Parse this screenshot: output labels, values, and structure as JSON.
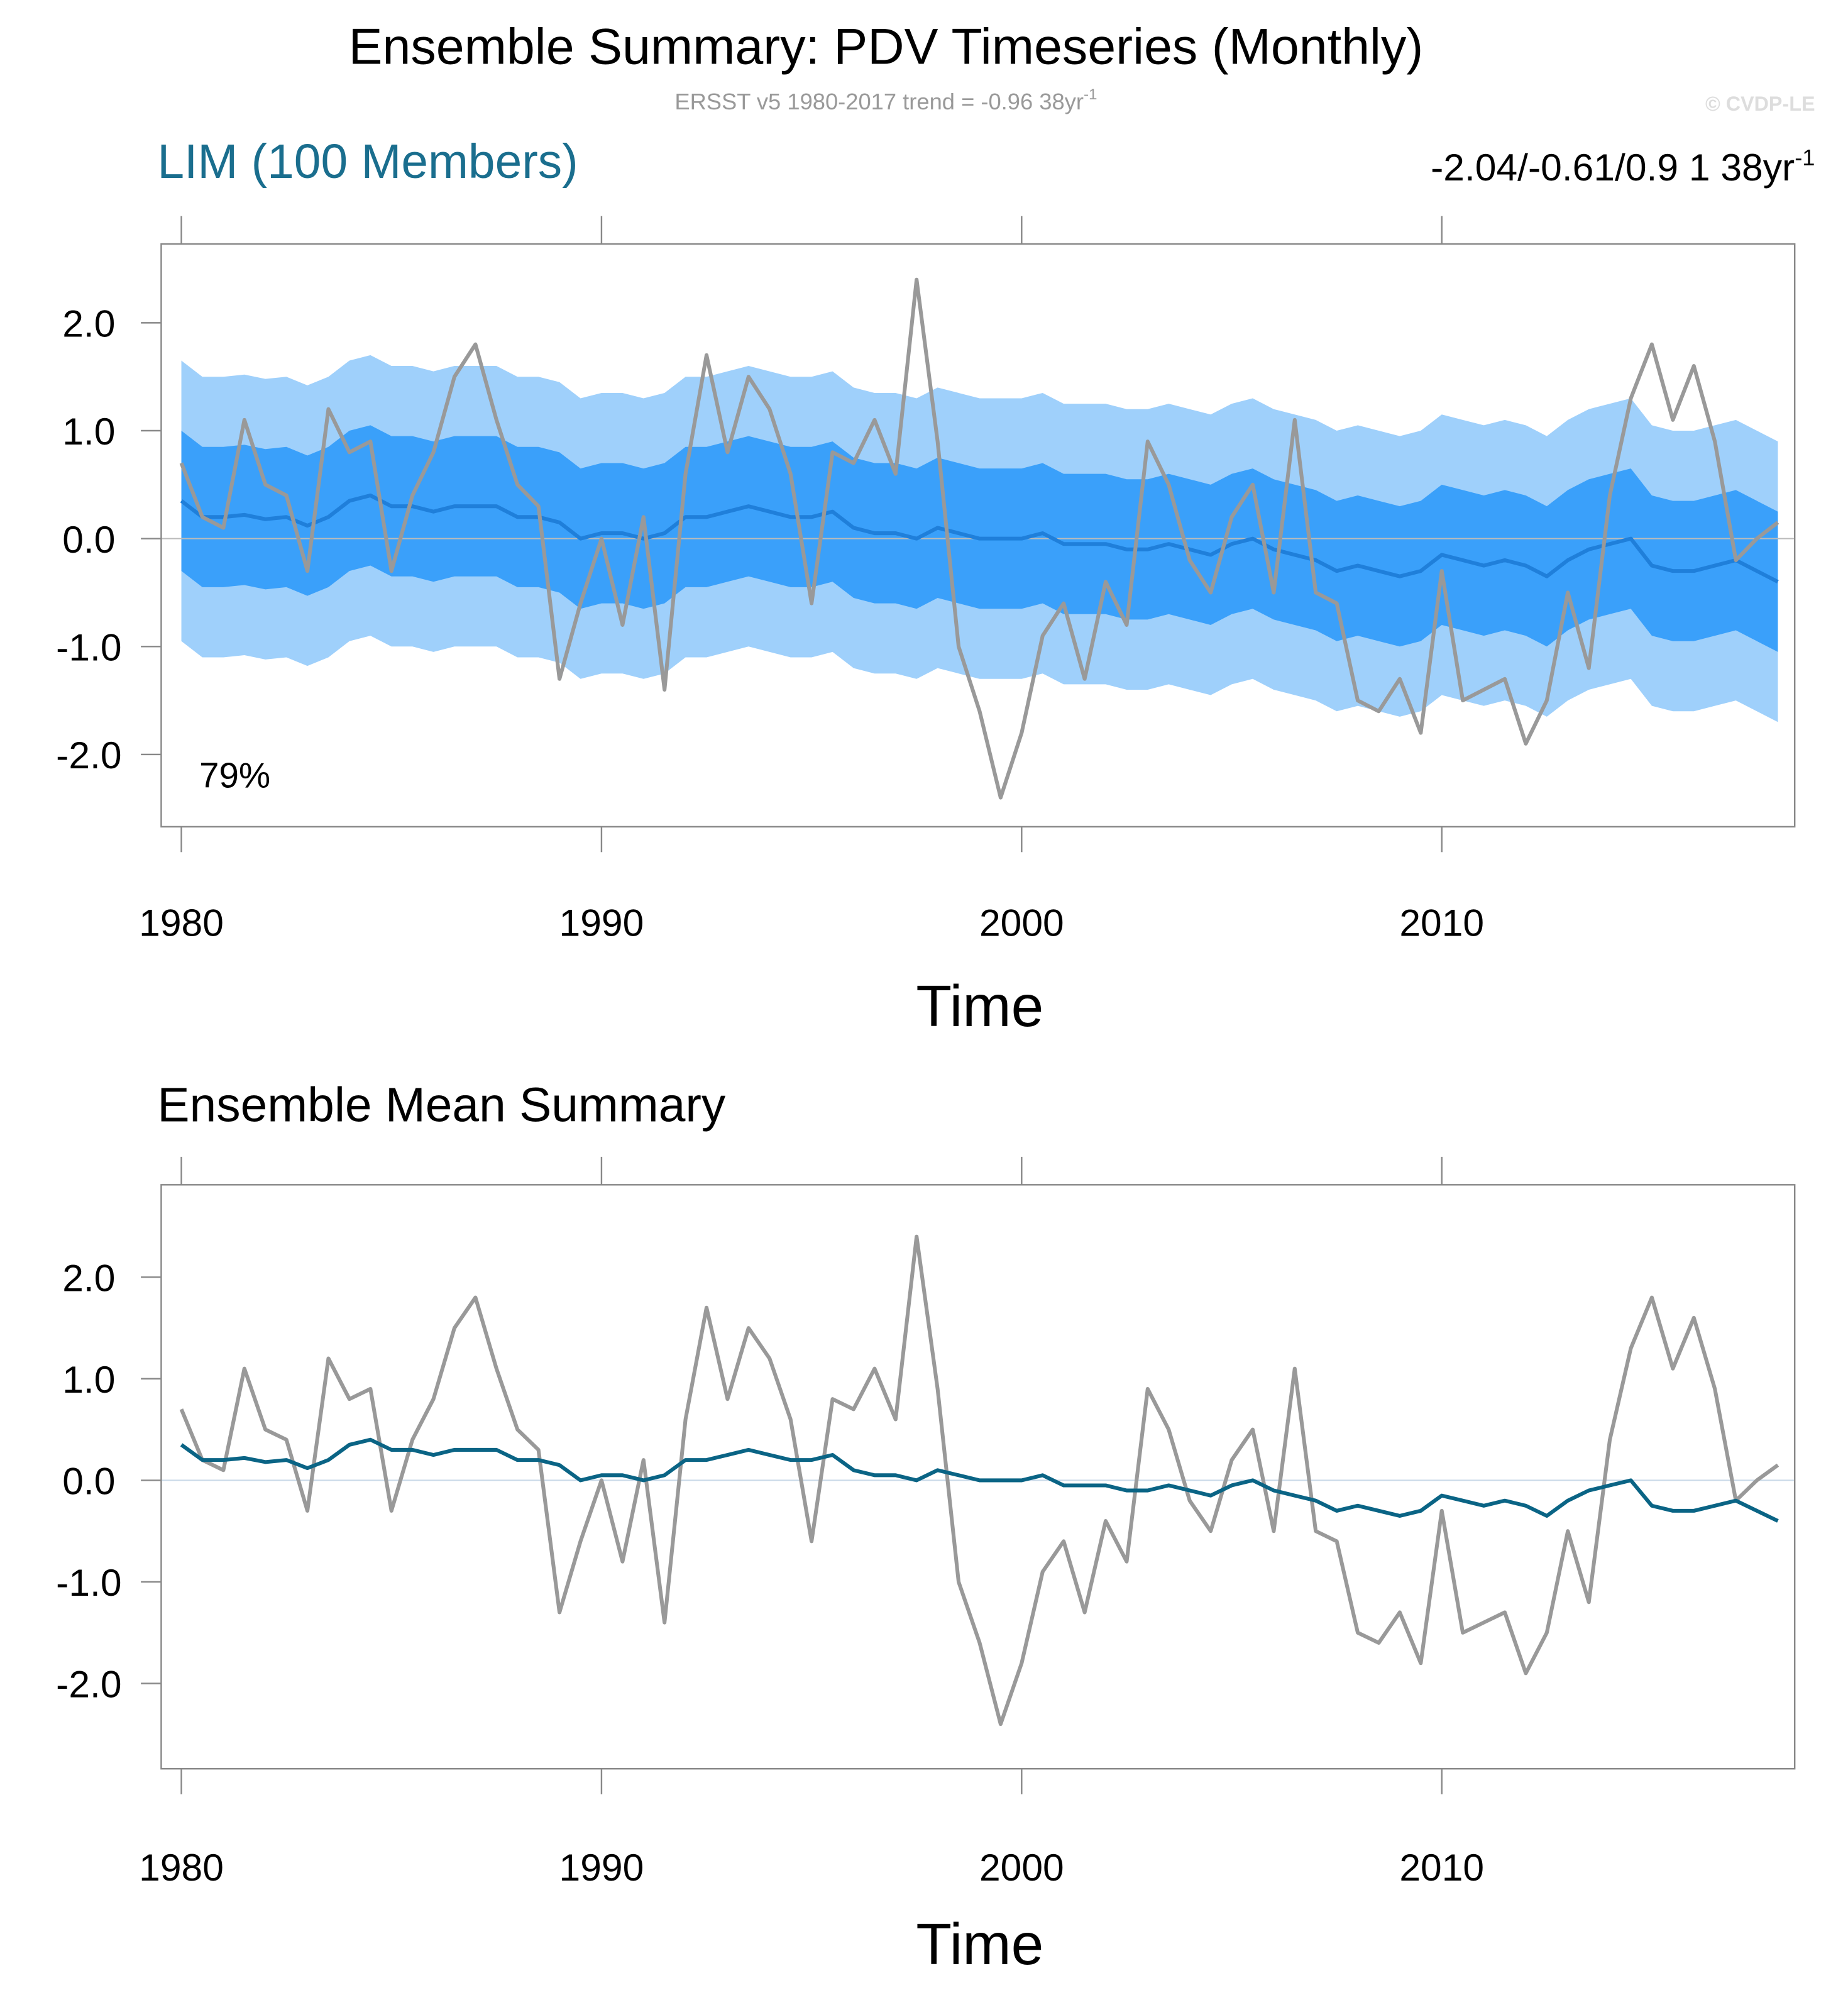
{
  "title": "Ensemble Summary: PDV Timeseries (Monthly)",
  "subtitle": "ERSST v5 1980-2017 trend = -0.96 38yr",
  "subtitle_sup": "-1",
  "credit": "© CVDP-LE",
  "chart_data": [
    {
      "type": "line",
      "title": "LIM (100 Members)",
      "title_color": "#1a6e8e",
      "stats": "-2.04/-0.61/0.9 1 38yr",
      "stats_sup": "-1",
      "annotation": "79%",
      "xlabel": "Time",
      "x": [
        1980,
        1980.5,
        1981,
        1981.5,
        1982,
        1982.5,
        1983,
        1983.5,
        1984,
        1984.5,
        1985,
        1985.5,
        1986,
        1986.5,
        1987,
        1987.5,
        1988,
        1988.5,
        1989,
        1989.5,
        1990,
        1990.5,
        1991,
        1991.5,
        1992,
        1992.5,
        1993,
        1993.5,
        1994,
        1994.5,
        1995,
        1995.5,
        1996,
        1996.5,
        1997,
        1997.5,
        1998,
        1998.5,
        1999,
        1999.5,
        2000,
        2000.5,
        2001,
        2001.5,
        2002,
        2002.5,
        2003,
        2003.5,
        2004,
        2004.5,
        2005,
        2005.5,
        2006,
        2006.5,
        2007,
        2007.5,
        2008,
        2008.5,
        2009,
        2009.5,
        2010,
        2010.5,
        2011,
        2011.5,
        2012,
        2012.5,
        2013,
        2013.5,
        2014,
        2014.5,
        2015,
        2015.5,
        2016,
        2016.5,
        2017,
        2017.5,
        2018
      ],
      "xlim": [
        1979.52,
        2018.4
      ],
      "xticks": [
        1980,
        1990,
        2000,
        2010
      ],
      "ylim": [
        -2.67,
        2.73
      ],
      "yticks": [
        {
          "value": -2,
          "label": "-2.0"
        },
        {
          "value": -1,
          "label": "-1.0"
        },
        {
          "value": 0,
          "label": "0.0"
        },
        {
          "value": 1,
          "label": "1.0"
        },
        {
          "value": 2,
          "label": "2.0"
        }
      ],
      "hline": 0,
      "hline_color": "#bbbbbb",
      "bands": [
        {
          "color": "#9fd0fb",
          "upper": [
            1.65,
            1.5,
            1.5,
            1.52,
            1.48,
            1.5,
            1.42,
            1.5,
            1.65,
            1.7,
            1.6,
            1.6,
            1.55,
            1.6,
            1.6,
            1.6,
            1.5,
            1.5,
            1.45,
            1.3,
            1.35,
            1.35,
            1.3,
            1.35,
            1.5,
            1.5,
            1.55,
            1.6,
            1.55,
            1.5,
            1.5,
            1.55,
            1.4,
            1.35,
            1.35,
            1.3,
            1.4,
            1.35,
            1.3,
            1.3,
            1.3,
            1.35,
            1.25,
            1.25,
            1.25,
            1.2,
            1.2,
            1.25,
            1.2,
            1.15,
            1.25,
            1.3,
            1.2,
            1.15,
            1.1,
            1.0,
            1.05,
            1.0,
            0.95,
            1.0,
            1.15,
            1.1,
            1.05,
            1.1,
            1.05,
            0.95,
            1.1,
            1.2,
            1.25,
            1.3,
            1.05,
            1.0,
            1.0,
            1.05,
            1.1,
            1.0,
            0.9
          ],
          "lower": [
            -0.95,
            -1.1,
            -1.1,
            -1.08,
            -1.12,
            -1.1,
            -1.18,
            -1.1,
            -0.95,
            -0.9,
            -1.0,
            -1.0,
            -1.05,
            -1.0,
            -1.0,
            -1.0,
            -1.1,
            -1.1,
            -1.15,
            -1.3,
            -1.25,
            -1.25,
            -1.3,
            -1.25,
            -1.1,
            -1.1,
            -1.05,
            -1.0,
            -1.05,
            -1.1,
            -1.1,
            -1.05,
            -1.2,
            -1.25,
            -1.25,
            -1.3,
            -1.2,
            -1.25,
            -1.3,
            -1.3,
            -1.3,
            -1.25,
            -1.35,
            -1.35,
            -1.35,
            -1.4,
            -1.4,
            -1.35,
            -1.4,
            -1.45,
            -1.35,
            -1.3,
            -1.4,
            -1.45,
            -1.5,
            -1.6,
            -1.55,
            -1.6,
            -1.65,
            -1.6,
            -1.45,
            -1.5,
            -1.55,
            -1.5,
            -1.55,
            -1.65,
            -1.5,
            -1.4,
            -1.35,
            -1.3,
            -1.55,
            -1.6,
            -1.6,
            -1.55,
            -1.5,
            -1.6,
            -1.7
          ]
        },
        {
          "color": "#3aa0fa",
          "upper": [
            1.0,
            0.85,
            0.85,
            0.87,
            0.83,
            0.85,
            0.77,
            0.85,
            1.0,
            1.05,
            0.95,
            0.95,
            0.9,
            0.95,
            0.95,
            0.95,
            0.85,
            0.85,
            0.8,
            0.65,
            0.7,
            0.7,
            0.65,
            0.7,
            0.85,
            0.85,
            0.9,
            0.95,
            0.9,
            0.85,
            0.85,
            0.9,
            0.75,
            0.7,
            0.7,
            0.65,
            0.75,
            0.7,
            0.65,
            0.65,
            0.65,
            0.7,
            0.6,
            0.6,
            0.6,
            0.55,
            0.55,
            0.6,
            0.55,
            0.5,
            0.6,
            0.65,
            0.55,
            0.5,
            0.45,
            0.35,
            0.4,
            0.35,
            0.3,
            0.35,
            0.5,
            0.45,
            0.4,
            0.45,
            0.4,
            0.3,
            0.45,
            0.55,
            0.6,
            0.65,
            0.4,
            0.35,
            0.35,
            0.4,
            0.45,
            0.35,
            0.25
          ],
          "lower": [
            -0.3,
            -0.45,
            -0.45,
            -0.43,
            -0.47,
            -0.45,
            -0.53,
            -0.45,
            -0.3,
            -0.25,
            -0.35,
            -0.35,
            -0.4,
            -0.35,
            -0.35,
            -0.35,
            -0.45,
            -0.45,
            -0.5,
            -0.65,
            -0.6,
            -0.6,
            -0.65,
            -0.6,
            -0.45,
            -0.45,
            -0.4,
            -0.35,
            -0.4,
            -0.45,
            -0.45,
            -0.4,
            -0.55,
            -0.6,
            -0.6,
            -0.65,
            -0.55,
            -0.6,
            -0.65,
            -0.65,
            -0.65,
            -0.6,
            -0.7,
            -0.7,
            -0.7,
            -0.75,
            -0.75,
            -0.7,
            -0.75,
            -0.8,
            -0.7,
            -0.65,
            -0.75,
            -0.8,
            -0.85,
            -0.95,
            -0.9,
            -0.95,
            -1.0,
            -0.95,
            -0.8,
            -0.85,
            -0.9,
            -0.85,
            -0.9,
            -1.0,
            -0.85,
            -0.75,
            -0.7,
            -0.65,
            -0.9,
            -0.95,
            -0.95,
            -0.9,
            -0.85,
            -0.95,
            -1.05
          ]
        }
      ],
      "series": [
        {
          "color": "#1f7fda",
          "values": [
            0.35,
            0.2,
            0.2,
            0.22,
            0.18,
            0.2,
            0.12,
            0.2,
            0.35,
            0.4,
            0.3,
            0.3,
            0.25,
            0.3,
            0.3,
            0.3,
            0.2,
            0.2,
            0.15,
            0.0,
            0.05,
            0.05,
            0.0,
            0.05,
            0.2,
            0.2,
            0.25,
            0.3,
            0.25,
            0.2,
            0.2,
            0.25,
            0.1,
            0.05,
            0.05,
            0.0,
            0.1,
            0.05,
            0.0,
            0.0,
            0.0,
            0.05,
            -0.05,
            -0.05,
            -0.05,
            -0.1,
            -0.1,
            -0.05,
            -0.1,
            -0.15,
            -0.05,
            0.0,
            -0.1,
            -0.15,
            -0.2,
            -0.3,
            -0.25,
            -0.3,
            -0.35,
            -0.3,
            -0.15,
            -0.2,
            -0.25,
            -0.2,
            -0.25,
            -0.35,
            -0.2,
            -0.1,
            -0.05,
            0.0,
            -0.25,
            -0.3,
            -0.3,
            -0.25,
            -0.2,
            -0.3,
            -0.4
          ]
        },
        {
          "color": "#999999",
          "values": [
            0.7,
            0.2,
            0.1,
            1.1,
            0.5,
            0.4,
            -0.3,
            1.2,
            0.8,
            0.9,
            -0.3,
            0.4,
            0.8,
            1.5,
            1.8,
            1.1,
            0.5,
            0.3,
            -1.3,
            -0.6,
            0.0,
            -0.8,
            0.2,
            -1.4,
            0.6,
            1.7,
            0.8,
            1.5,
            1.2,
            0.6,
            -0.6,
            0.8,
            0.7,
            1.1,
            0.6,
            2.4,
            0.9,
            -1.0,
            -1.6,
            -2.4,
            -1.8,
            -0.9,
            -0.6,
            -1.3,
            -0.4,
            -0.8,
            0.9,
            0.5,
            -0.2,
            -0.5,
            0.2,
            0.5,
            -0.5,
            1.1,
            -0.5,
            -0.6,
            -1.5,
            -1.6,
            -1.3,
            -1.8,
            -0.3,
            -1.5,
            -1.4,
            -1.3,
            -1.9,
            -1.5,
            -0.5,
            -1.2,
            0.4,
            1.3,
            1.8,
            1.1,
            1.6,
            0.9,
            -0.2,
            0.0,
            0.15
          ]
        }
      ]
    },
    {
      "type": "line",
      "title": "Ensemble Mean Summary",
      "title_color": "#000000",
      "xlabel": "Time",
      "x": [
        1980,
        1980.5,
        1981,
        1981.5,
        1982,
        1982.5,
        1983,
        1983.5,
        1984,
        1984.5,
        1985,
        1985.5,
        1986,
        1986.5,
        1987,
        1987.5,
        1988,
        1988.5,
        1989,
        1989.5,
        1990,
        1990.5,
        1991,
        1991.5,
        1992,
        1992.5,
        1993,
        1993.5,
        1994,
        1994.5,
        1995,
        1995.5,
        1996,
        1996.5,
        1997,
        1997.5,
        1998,
        1998.5,
        1999,
        1999.5,
        2000,
        2000.5,
        2001,
        2001.5,
        2002,
        2002.5,
        2003,
        2003.5,
        2004,
        2004.5,
        2005,
        2005.5,
        2006,
        2006.5,
        2007,
        2007.5,
        2008,
        2008.5,
        2009,
        2009.5,
        2010,
        2010.5,
        2011,
        2011.5,
        2012,
        2012.5,
        2013,
        2013.5,
        2014,
        2014.5,
        2015,
        2015.5,
        2016,
        2016.5,
        2017,
        2017.5,
        2018
      ],
      "xlim": [
        1979.52,
        2018.4
      ],
      "xticks": [
        1980,
        1990,
        2000,
        2010
      ],
      "ylim": [
        -2.84,
        2.91
      ],
      "yticks": [
        {
          "value": -2,
          "label": "-2.0"
        },
        {
          "value": -1,
          "label": "-1.0"
        },
        {
          "value": 0,
          "label": "0.0"
        },
        {
          "value": 1,
          "label": "1.0"
        },
        {
          "value": 2,
          "label": "2.0"
        }
      ],
      "hline": 0,
      "hline_color": "#c8d8e8",
      "series": [
        {
          "color": "#999999",
          "values": [
            0.7,
            0.2,
            0.1,
            1.1,
            0.5,
            0.4,
            -0.3,
            1.2,
            0.8,
            0.9,
            -0.3,
            0.4,
            0.8,
            1.5,
            1.8,
            1.1,
            0.5,
            0.3,
            -1.3,
            -0.6,
            0.0,
            -0.8,
            0.2,
            -1.4,
            0.6,
            1.7,
            0.8,
            1.5,
            1.2,
            0.6,
            -0.6,
            0.8,
            0.7,
            1.1,
            0.6,
            2.4,
            0.9,
            -1.0,
            -1.6,
            -2.4,
            -1.8,
            -0.9,
            -0.6,
            -1.3,
            -0.4,
            -0.8,
            0.9,
            0.5,
            -0.2,
            -0.5,
            0.2,
            0.5,
            -0.5,
            1.1,
            -0.5,
            -0.6,
            -1.5,
            -1.6,
            -1.3,
            -1.8,
            -0.3,
            -1.5,
            -1.4,
            -1.3,
            -1.9,
            -1.5,
            -0.5,
            -1.2,
            0.4,
            1.3,
            1.8,
            1.1,
            1.6,
            0.9,
            -0.2,
            0.0,
            0.15
          ]
        },
        {
          "color": "#0a6485",
          "values": [
            0.35,
            0.2,
            0.2,
            0.22,
            0.18,
            0.2,
            0.12,
            0.2,
            0.35,
            0.4,
            0.3,
            0.3,
            0.25,
            0.3,
            0.3,
            0.3,
            0.2,
            0.2,
            0.15,
            0.0,
            0.05,
            0.05,
            0.0,
            0.05,
            0.2,
            0.2,
            0.25,
            0.3,
            0.25,
            0.2,
            0.2,
            0.25,
            0.1,
            0.05,
            0.05,
            0.0,
            0.1,
            0.05,
            0.0,
            0.0,
            0.0,
            0.05,
            -0.05,
            -0.05,
            -0.05,
            -0.1,
            -0.1,
            -0.05,
            -0.1,
            -0.15,
            -0.05,
            0.0,
            -0.1,
            -0.15,
            -0.2,
            -0.3,
            -0.25,
            -0.3,
            -0.35,
            -0.3,
            -0.15,
            -0.2,
            -0.25,
            -0.2,
            -0.25,
            -0.35,
            -0.2,
            -0.1,
            -0.05,
            0.0,
            -0.25,
            -0.3,
            -0.3,
            -0.25,
            -0.2,
            -0.3,
            -0.4
          ]
        }
      ]
    }
  ]
}
